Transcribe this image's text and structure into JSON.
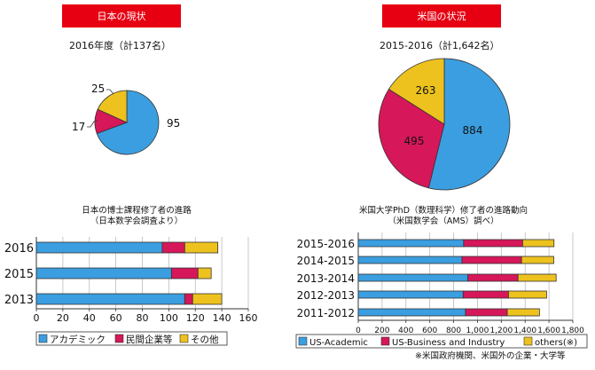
{
  "colors": {
    "academic": "#3b9ee0",
    "business": "#d6175a",
    "others": "#edc21e",
    "header_bg": "#e60012"
  },
  "japan": {
    "header": "日本の現状",
    "subtitle": "2016年度（計137名）",
    "pie_labels": {
      "academic": "95",
      "business": "17",
      "others": "25"
    },
    "bar_title_line1": "日本の博士課程修了者の進路",
    "bar_title_line2": "（日本数学会調査より）",
    "legend": {
      "academic": "アカデミック",
      "business": "民間企業等",
      "others": "その他"
    },
    "ticks": [
      "0",
      "20",
      "40",
      "60",
      "80",
      "100",
      "120",
      "140",
      "160"
    ]
  },
  "us": {
    "header": "米国の状況",
    "subtitle": "2015-2016（計1,642名）",
    "pie_labels": {
      "academic": "884",
      "business": "495",
      "others": "263"
    },
    "bar_title_line1": "米国大学PhD（数理科学）修了者の進路動向",
    "bar_title_line2": "（米国数学会（AMS）調べ）",
    "legend": {
      "academic": "US-Academic",
      "business": "US-Business and Industry",
      "others": "others(※)"
    },
    "ticks": [
      "0",
      "200",
      "400",
      "600",
      "800",
      "1,000",
      "1,200",
      "1,400",
      "1,600",
      "1,800"
    ],
    "footnote": "※米国政府機関、米国外の企業・大学等"
  },
  "chart_data": [
    {
      "type": "pie",
      "title": "2016年度（計137名）",
      "categories": [
        "アカデミック",
        "民間企業等",
        "その他"
      ],
      "values": [
        95,
        17,
        25
      ]
    },
    {
      "type": "pie",
      "title": "2015-2016（計1,642名）",
      "categories": [
        "US-Academic",
        "US-Business and Industry",
        "others(※)"
      ],
      "values": [
        884,
        495,
        263
      ]
    },
    {
      "type": "bar",
      "orientation": "horizontal",
      "stacked": true,
      "title": "日本の博士課程修了者の進路（日本数学会調査より）",
      "categories": [
        "2016",
        "2015",
        "2013"
      ],
      "series": [
        {
          "name": "アカデミック",
          "values": [
            95,
            102,
            112
          ]
        },
        {
          "name": "民間企業等",
          "values": [
            17,
            20,
            6
          ]
        },
        {
          "name": "その他",
          "values": [
            25,
            10,
            22
          ]
        }
      ],
      "xlim": [
        0,
        160
      ],
      "legend": "bottom"
    },
    {
      "type": "bar",
      "orientation": "horizontal",
      "stacked": true,
      "title": "米国大学PhD（数理科学）修了者の進路動向（米国数学会（AMS）調べ）",
      "categories": [
        "2015-2016",
        "2014-2015",
        "2013-2014",
        "2012-2013",
        "2011-2012"
      ],
      "series": [
        {
          "name": "US-Academic",
          "values": [
            884,
            870,
            920,
            880,
            900
          ]
        },
        {
          "name": "US-Business and Industry",
          "values": [
            495,
            500,
            420,
            380,
            350
          ]
        },
        {
          "name": "others(※)",
          "values": [
            263,
            270,
            320,
            320,
            270
          ]
        }
      ],
      "xlim": [
        0,
        1800
      ],
      "legend": "bottom"
    }
  ]
}
